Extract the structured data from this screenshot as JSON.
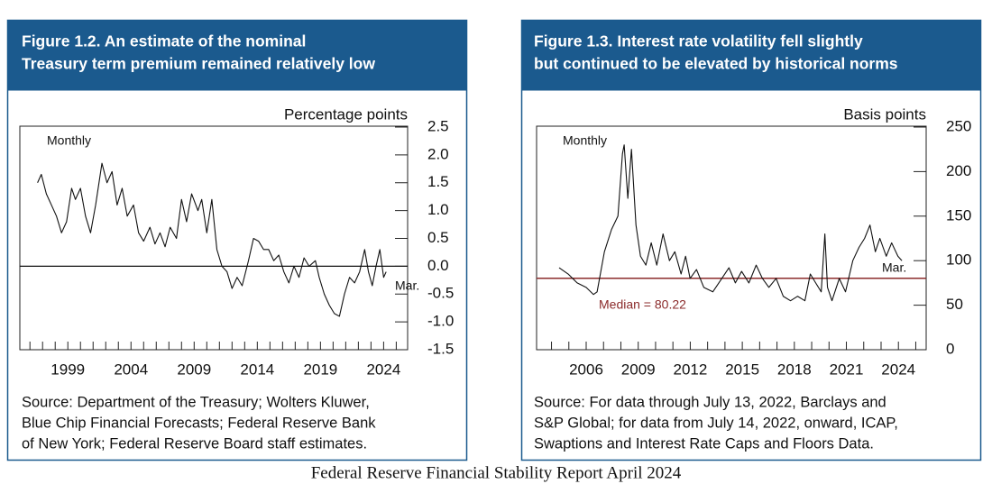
{
  "chart_data": [
    {
      "type": "line",
      "title": [
        "Figure 1.2. An estimate of the nominal",
        "Treasury term premium remained relatively low"
      ],
      "ylabel": "Percentage points",
      "annotations": [
        "Monthly",
        "Mar."
      ],
      "source": [
        "Source: Department of the Treasury; Wolters Kluwer,",
        "Blue Chip Financial Forecasts; Federal Reserve Bank",
        "of New York; Federal Reserve Board staff estimates."
      ],
      "xlim": [
        1995.2,
        2025.9
      ],
      "xticks": [
        1999,
        2004,
        2009,
        2014,
        2019,
        2024
      ],
      "xminorticks": [
        1996,
        1997,
        1998,
        1999,
        2000,
        2001,
        2002,
        2003,
        2004,
        2005,
        2006,
        2007,
        2008,
        2009,
        2010,
        2011,
        2012,
        2013,
        2014,
        2015,
        2016,
        2017,
        2018,
        2019,
        2020,
        2021,
        2022,
        2023,
        2024,
        2025
      ],
      "ylim": [
        -1.5,
        2.5
      ],
      "yticks": [
        2.5,
        {
          "value": 2,
          "label": "2.0"
        },
        1.5,
        {
          "value": 1,
          "label": "1.0"
        },
        0.5,
        {
          "value": 0,
          "label": "0.0"
        },
        -0.5,
        {
          "value": -1,
          "label": "-1.0"
        },
        -1.5
      ],
      "reference_line": 0,
      "series": [
        {
          "color": "#111111",
          "x": [
            1996.6,
            1996.9,
            1997.3,
            1997.7,
            1998.1,
            1998.5,
            1998.9,
            1999.3,
            1999.6,
            2000.0,
            2000.4,
            2000.8,
            2001.2,
            2001.7,
            2002.1,
            2002.5,
            2002.9,
            2003.3,
            2003.7,
            2004.2,
            2004.6,
            2005.0,
            2005.5,
            2005.9,
            2006.3,
            2006.7,
            2007.1,
            2007.6,
            2008.0,
            2008.4,
            2008.8,
            2009.3,
            2009.6,
            2010.0,
            2010.4,
            2010.8,
            2011.2,
            2011.6,
            2012.0,
            2012.4,
            2012.8,
            2013.3,
            2013.7,
            2014.1,
            2014.5,
            2014.9,
            2015.3,
            2015.7,
            2016.1,
            2016.5,
            2016.9,
            2017.3,
            2017.7,
            2018.1,
            2018.6,
            2018.9,
            2019.3,
            2019.7,
            2020.1,
            2020.5,
            2020.9,
            2021.3,
            2021.7,
            2022.1,
            2022.5,
            2022.8,
            2023.1,
            2023.4,
            2023.7,
            2024.0,
            2024.2
          ],
          "values": [
            1.5,
            1.65,
            1.3,
            1.1,
            0.9,
            0.6,
            0.8,
            1.4,
            1.2,
            1.4,
            0.9,
            0.6,
            1.1,
            1.85,
            1.5,
            1.7,
            1.1,
            1.4,
            0.9,
            1.1,
            0.6,
            0.45,
            0.7,
            0.4,
            0.6,
            0.35,
            0.7,
            0.5,
            1.2,
            0.8,
            1.3,
            1.0,
            1.2,
            0.6,
            1.2,
            0.3,
            0.0,
            -0.1,
            -0.4,
            -0.2,
            -0.35,
            0.1,
            0.5,
            0.45,
            0.3,
            0.3,
            0.1,
            0.2,
            -0.1,
            -0.3,
            0.0,
            -0.2,
            0.15,
            0.0,
            0.1,
            -0.2,
            -0.5,
            -0.7,
            -0.85,
            -0.9,
            -0.5,
            -0.2,
            -0.3,
            -0.1,
            0.3,
            -0.1,
            -0.35,
            0.0,
            0.3,
            -0.2,
            -0.1
          ]
        }
      ]
    },
    {
      "type": "line",
      "title": [
        "Figure 1.3. Interest rate volatility fell slightly",
        "but continued to be elevated by historical norms"
      ],
      "ylabel": "Basis points",
      "annotations": [
        "Monthly",
        "Mar."
      ],
      "source": [
        "Source: For data through July 13, 2022, Barclays and",
        "S&P Global; for data from July 14, 2022, onward, ICAP,",
        "Swaptions and Interest Rate Caps and Floors Data."
      ],
      "xlim": [
        2003.14,
        2025.6
      ],
      "xticks": [
        2006,
        2009,
        2012,
        2015,
        2018,
        2021,
        2024
      ],
      "xminorticks": [
        2004,
        2005,
        2006,
        2007,
        2008,
        2009,
        2010,
        2011,
        2012,
        2013,
        2014,
        2015,
        2016,
        2017,
        2018,
        2019,
        2020,
        2021,
        2022,
        2023,
        2024,
        2025
      ],
      "ylim": [
        0,
        250
      ],
      "yticks": [
        0,
        50,
        100,
        150,
        200,
        250
      ],
      "median": {
        "value": 80.22,
        "label": "Median = 80.22",
        "color": "#8b2b2b"
      },
      "series": [
        {
          "color": "#111111",
          "x": [
            2004.44,
            2004.96,
            2005.48,
            2006.0,
            2006.42,
            2006.63,
            2007.05,
            2007.46,
            2007.83,
            2008.09,
            2008.19,
            2008.4,
            2008.61,
            2008.87,
            2009.13,
            2009.44,
            2009.75,
            2010.07,
            2010.43,
            2010.8,
            2011.11,
            2011.47,
            2011.73,
            2011.99,
            2012.36,
            2012.78,
            2013.3,
            2013.82,
            2014.23,
            2014.6,
            2014.96,
            2015.38,
            2015.8,
            2016.16,
            2016.53,
            2016.95,
            2017.36,
            2017.78,
            2018.19,
            2018.61,
            2018.92,
            2019.23,
            2019.55,
            2019.76,
            2019.91,
            2020.17,
            2020.59,
            2020.95,
            2021.37,
            2021.73,
            2022.05,
            2022.36,
            2022.67,
            2022.93,
            2023.3,
            2023.61,
            2023.97,
            2024.2
          ],
          "values": [
            92,
            85,
            75,
            70,
            62,
            65,
            110,
            135,
            150,
            220,
            230,
            170,
            225,
            140,
            105,
            95,
            120,
            95,
            130,
            100,
            110,
            85,
            105,
            80,
            90,
            70,
            65,
            80,
            92,
            75,
            88,
            75,
            95,
            80,
            70,
            80,
            60,
            55,
            60,
            55,
            85,
            75,
            65,
            130,
            70,
            55,
            80,
            65,
            100,
            115,
            125,
            140,
            110,
            125,
            105,
            120,
            105,
            100
          ]
        }
      ]
    }
  ],
  "footer": "Federal Reserve Financial Stability Report April 2024"
}
